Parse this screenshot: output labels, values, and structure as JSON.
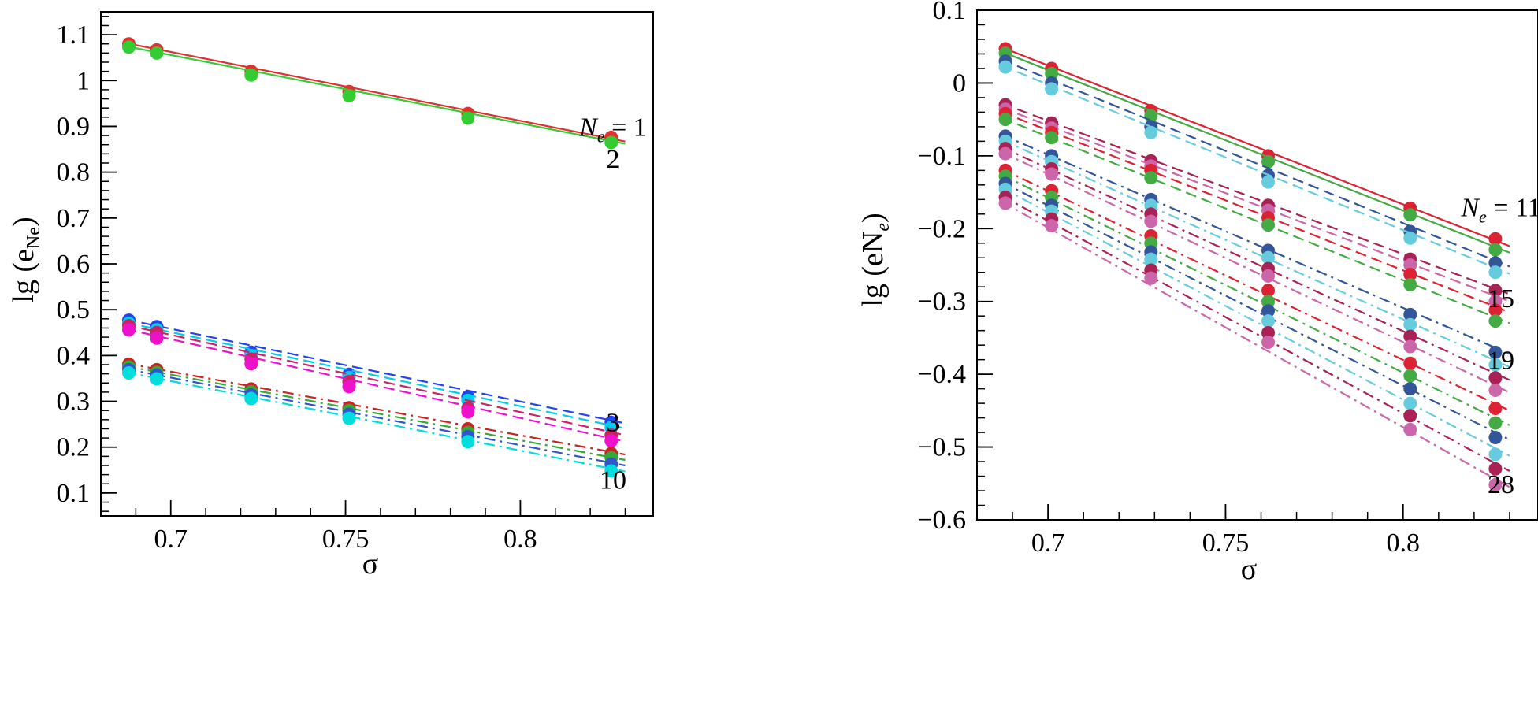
{
  "chart_data": [
    {
      "type": "scatter",
      "xlabel": "σ",
      "ylabel_main": "lg (e",
      "ylabel_sub": "Ne",
      "ylabel_close": ")",
      "xlim": [
        0.68,
        0.838
      ],
      "ylim": [
        0.05,
        1.15
      ],
      "x_ticks": [
        0.7,
        0.75,
        0.8
      ],
      "x_tick_labels": [
        "0.7",
        "0.75",
        "0.8"
      ],
      "y_ticks": [
        0.1,
        0.2,
        0.3,
        0.4,
        0.5,
        0.6,
        0.7,
        0.8,
        0.9,
        1.0,
        1.1
      ],
      "y_tick_labels": [
        "0.1",
        "0.2",
        "0.3",
        "0.4",
        "0.5",
        "0.6",
        "0.7",
        "0.8",
        "0.9",
        "1",
        "1.1"
      ],
      "x": [
        0.688,
        0.696,
        0.723,
        0.751,
        0.785,
        0.826
      ],
      "series": [
        {
          "color": "#e03030",
          "dash": "solid",
          "values": [
            1.08,
            1.067,
            1.02,
            0.976,
            0.928,
            0.876
          ],
          "fit_end": 0.867
        },
        {
          "color": "#33cc33",
          "dash": "solid",
          "values": [
            1.073,
            1.06,
            1.012,
            0.967,
            0.918,
            0.865
          ],
          "fit_end": 0.862
        },
        {
          "color": "#2244ee",
          "dash": "dashed",
          "values": [
            0.477,
            0.463,
            0.407,
            0.359,
            0.31,
            0.254
          ],
          "fit_end": 0.252
        },
        {
          "color": "#00ccee",
          "dash": "dashed",
          "values": [
            0.47,
            0.456,
            0.4,
            0.352,
            0.302,
            0.243
          ],
          "fit_end": 0.241
        },
        {
          "color": "#cc2266",
          "dash": "dashed",
          "values": [
            0.465,
            0.45,
            0.392,
            0.343,
            0.285,
            0.226
          ],
          "fit_end": 0.226
        },
        {
          "color": "#ee11cc",
          "dash": "dashed",
          "values": [
            0.456,
            0.438,
            0.382,
            0.332,
            0.277,
            0.214
          ],
          "fit_end": 0.212
        },
        {
          "color": "#cc2222",
          "dash": "dashdot",
          "values": [
            0.381,
            0.369,
            0.327,
            0.286,
            0.24,
            0.186
          ],
          "fit_end": 0.184
        },
        {
          "color": "#33aa33",
          "dash": "dashdot",
          "values": [
            0.375,
            0.363,
            0.321,
            0.28,
            0.232,
            0.177
          ],
          "fit_end": 0.172
        },
        {
          "color": "#3355cc",
          "dash": "dashdot",
          "values": [
            0.369,
            0.357,
            0.314,
            0.272,
            0.223,
            0.163
          ],
          "fit_end": 0.16
        },
        {
          "color": "#00dddd",
          "dash": "dashdot",
          "values": [
            0.362,
            0.349,
            0.306,
            0.263,
            0.212,
            0.148
          ],
          "fit_end": 0.147
        }
      ],
      "annotations": [
        {
          "text_main": "N",
          "text_sub": "e",
          "text_rest": " = 1",
          "x": 0.826,
          "y": 0.9
        },
        {
          "text_rest": "2",
          "x": 0.826,
          "y": 0.83
        },
        {
          "text_rest": "3",
          "x": 0.826,
          "y": 0.255
        },
        {
          "text_rest": "10",
          "x": 0.826,
          "y": 0.13
        }
      ]
    },
    {
      "type": "scatter",
      "xlabel": "σ",
      "ylabel_main": "lg (eN",
      "ylabel_sub": "e",
      "ylabel_close": ")",
      "xlim": [
        0.68,
        0.838
      ],
      "ylim": [
        -0.6,
        0.1
      ],
      "x_ticks": [
        0.7,
        0.75,
        0.8
      ],
      "x_tick_labels": [
        "0.7",
        "0.75",
        "0.8"
      ],
      "y_ticks": [
        -0.6,
        -0.5,
        -0.4,
        -0.3,
        -0.2,
        -0.1,
        0.0,
        0.1
      ],
      "y_tick_labels": [
        "−0.6",
        "−0.5",
        "−0.4",
        "−0.3",
        "−0.2",
        "−0.1",
        "0",
        "0.1"
      ],
      "x": [
        0.688,
        0.701,
        0.729,
        0.762,
        0.802,
        0.826
      ],
      "series": [
        {
          "color": "#dd2233",
          "dash": "solid",
          "values": [
            0.047,
            0.02,
            -0.038,
            -0.1,
            -0.172,
            -0.214
          ],
          "fit_end": -0.224
        },
        {
          "color": "#44aa44",
          "dash": "solid",
          "values": [
            0.041,
            0.013,
            -0.045,
            -0.108,
            -0.181,
            -0.229
          ],
          "fit_end": -0.233
        },
        {
          "color": "#335599",
          "dash": "dashed",
          "values": [
            0.03,
            0.0,
            -0.06,
            -0.127,
            -0.204,
            -0.247
          ],
          "fit_end": -0.252
        },
        {
          "color": "#66ccdd",
          "dash": "dashed",
          "values": [
            0.022,
            -0.008,
            -0.068,
            -0.136,
            -0.213,
            -0.26
          ],
          "fit_end": -0.262
        },
        {
          "color": "#aa2255",
          "dash": "dashed",
          "values": [
            -0.03,
            -0.055,
            -0.107,
            -0.168,
            -0.242,
            -0.285
          ],
          "fit_end": -0.29
        },
        {
          "color": "#cc66aa",
          "dash": "dashed",
          "values": [
            -0.036,
            -0.062,
            -0.114,
            -0.175,
            -0.25,
            -0.3
          ],
          "fit_end": -0.3
        },
        {
          "color": "#dd2233",
          "dash": "dashed",
          "values": [
            -0.042,
            -0.068,
            -0.12,
            -0.185,
            -0.263,
            -0.312
          ],
          "fit_end": -0.315
        },
        {
          "color": "#44aa44",
          "dash": "dashed",
          "values": [
            -0.05,
            -0.075,
            -0.13,
            -0.195,
            -0.277,
            -0.327
          ],
          "fit_end": -0.33
        },
        {
          "color": "#335599",
          "dash": "dashdot",
          "values": [
            -0.073,
            -0.1,
            -0.16,
            -0.23,
            -0.318,
            -0.37
          ],
          "fit_end": -0.372
        },
        {
          "color": "#66ccdd",
          "dash": "dashdot",
          "values": [
            -0.08,
            -0.108,
            -0.168,
            -0.24,
            -0.332,
            -0.387
          ],
          "fit_end": -0.39
        },
        {
          "color": "#aa2255",
          "dash": "dashdot",
          "values": [
            -0.09,
            -0.118,
            -0.18,
            -0.255,
            -0.348,
            -0.405
          ],
          "fit_end": -0.408
        },
        {
          "color": "#cc66aa",
          "dash": "dashdot",
          "values": [
            -0.097,
            -0.125,
            -0.19,
            -0.265,
            -0.362,
            -0.422
          ],
          "fit_end": -0.425
        },
        {
          "color": "#dd2233",
          "dash": "dashdot",
          "values": [
            -0.12,
            -0.148,
            -0.21,
            -0.285,
            -0.385,
            -0.447
          ],
          "fit_end": -0.45
        },
        {
          "color": "#44aa44",
          "dash": "dashdot",
          "values": [
            -0.128,
            -0.157,
            -0.22,
            -0.3,
            -0.402,
            -0.467
          ],
          "fit_end": -0.47
        },
        {
          "color": "#335599",
          "dash": "dashdot",
          "values": [
            -0.138,
            -0.168,
            -0.232,
            -0.313,
            -0.42,
            -0.487
          ],
          "fit_end": -0.49
        },
        {
          "color": "#66ccdd",
          "dash": "dashdot",
          "values": [
            -0.146,
            -0.176,
            -0.242,
            -0.327,
            -0.44,
            -0.51
          ],
          "fit_end": -0.512
        },
        {
          "color": "#aa2255",
          "dash": "dashdot",
          "values": [
            -0.157,
            -0.187,
            -0.257,
            -0.343,
            -0.457,
            -0.53
          ],
          "fit_end": -0.533
        },
        {
          "color": "#cc66aa",
          "dash": "dashdot",
          "values": [
            -0.165,
            -0.196,
            -0.268,
            -0.356,
            -0.476,
            -0.552
          ],
          "fit_end": -0.555
        }
      ],
      "annotations": [
        {
          "text_main": "N",
          "text_sub": "e",
          "text_rest": " = 11",
          "x": 0.826,
          "y": -0.17
        },
        {
          "text_rest": "15",
          "x": 0.826,
          "y": -0.295
        },
        {
          "text_rest": "19",
          "x": 0.826,
          "y": -0.38
        },
        {
          "text_rest": "28",
          "x": 0.826,
          "y": -0.55
        }
      ]
    }
  ]
}
